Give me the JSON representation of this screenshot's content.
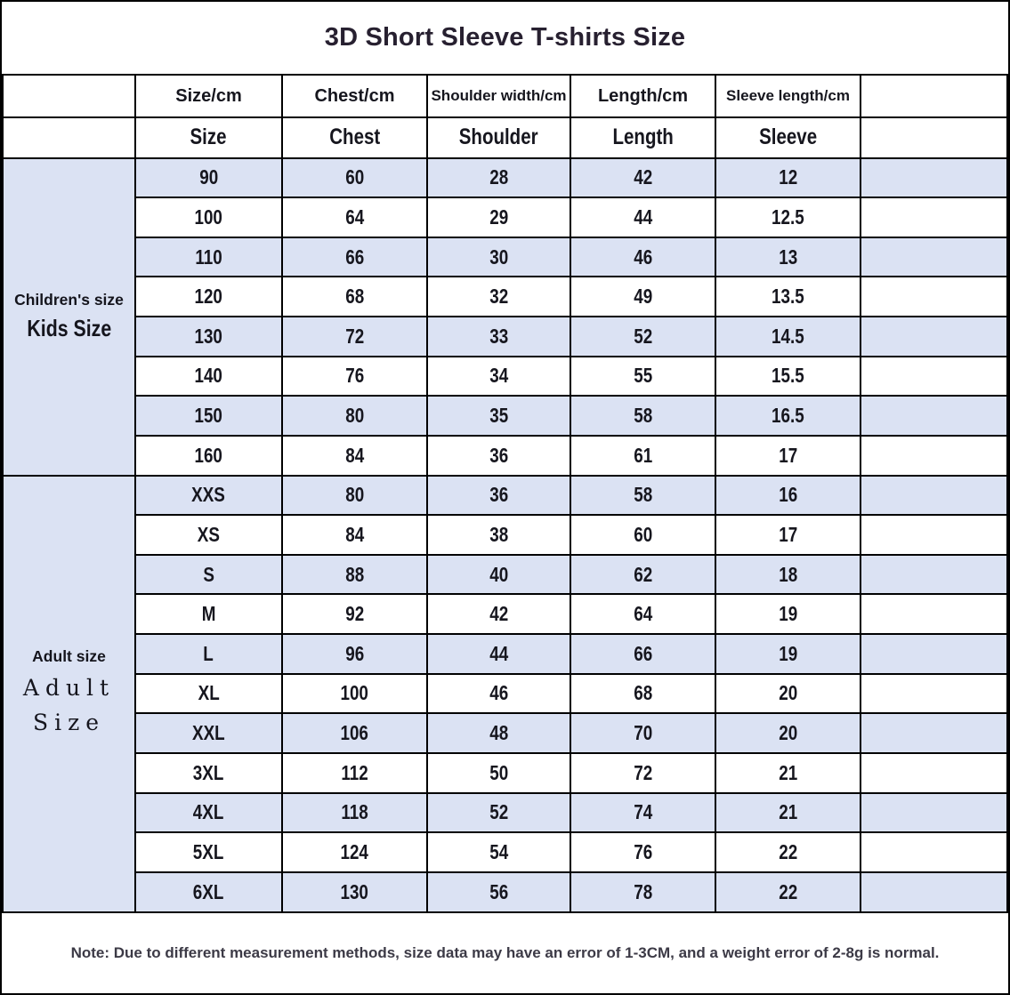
{
  "chart_data": {
    "type": "table",
    "title": "3D Short Sleeve T-shirts Size",
    "columns_unit_row": [
      "Size/cm",
      "Chest/cm",
      "Shoulder width/cm",
      "Length/cm",
      "Sleeve length/cm"
    ],
    "columns": [
      "Size",
      "Chest",
      "Shoulder",
      "Length",
      "Sleeve"
    ],
    "sections": [
      {
        "group_label": "Children's size",
        "group_sublabel": "Kids Size",
        "rows": [
          [
            "90",
            "60",
            "28",
            "42",
            "12"
          ],
          [
            "100",
            "64",
            "29",
            "44",
            "12.5"
          ],
          [
            "110",
            "66",
            "30",
            "46",
            "13"
          ],
          [
            "120",
            "68",
            "32",
            "49",
            "13.5"
          ],
          [
            "130",
            "72",
            "33",
            "52",
            "14.5"
          ],
          [
            "140",
            "76",
            "34",
            "55",
            "15.5"
          ],
          [
            "150",
            "80",
            "35",
            "58",
            "16.5"
          ],
          [
            "160",
            "84",
            "36",
            "61",
            "17"
          ]
        ]
      },
      {
        "group_label": "Adult size",
        "group_sublabel": "Adult Size",
        "rows": [
          [
            "XXS",
            "80",
            "36",
            "58",
            "16"
          ],
          [
            "XS",
            "84",
            "38",
            "60",
            "17"
          ],
          [
            "S",
            "88",
            "40",
            "62",
            "18"
          ],
          [
            "M",
            "92",
            "42",
            "64",
            "19"
          ],
          [
            "L",
            "96",
            "44",
            "66",
            "19"
          ],
          [
            "XL",
            "100",
            "46",
            "68",
            "20"
          ],
          [
            "XXL",
            "106",
            "48",
            "70",
            "20"
          ],
          [
            "3XL",
            "112",
            "50",
            "72",
            "21"
          ],
          [
            "4XL",
            "118",
            "52",
            "74",
            "21"
          ],
          [
            "5XL",
            "124",
            "54",
            "76",
            "22"
          ],
          [
            "6XL",
            "130",
            "56",
            "78",
            "22"
          ]
        ]
      }
    ],
    "note": "Note: Due to different measurement methods, size data may have an error of 1-3CM, and a weight error of 2-8g is normal.",
    "layout": {
      "stripe_color": "#dbe2f3",
      "border_color": "#000000",
      "grid": true,
      "legend_position": "none"
    }
  }
}
